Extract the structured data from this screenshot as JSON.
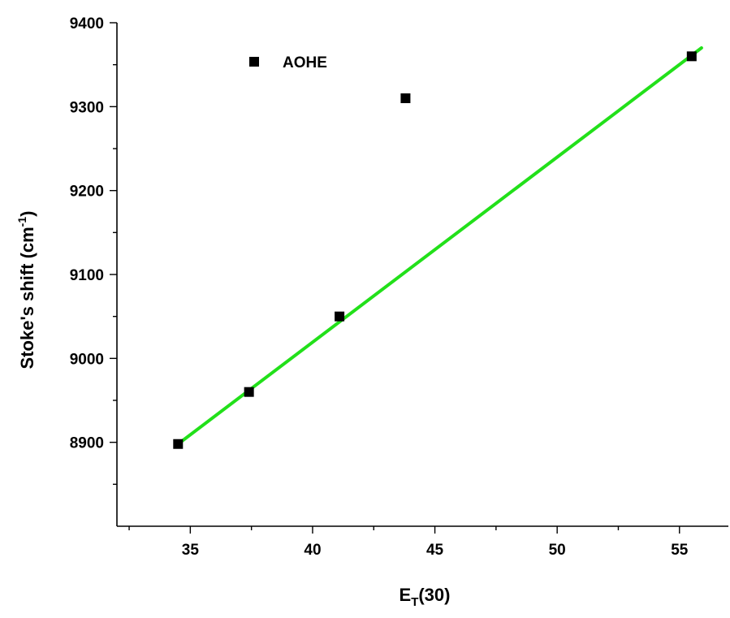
{
  "chart_data": {
    "type": "scatter",
    "title": "",
    "xlabel": {
      "main": "E",
      "sub": "T",
      "rest": "(30)"
    },
    "ylabel": {
      "main": "Stoke's shift (cm",
      "sup": "-1",
      "rest": ")"
    },
    "xlim": [
      32,
      57
    ],
    "ylim": [
      8800,
      9400
    ],
    "xticks": [
      35,
      40,
      45,
      50,
      55
    ],
    "yticks": [
      8900,
      9000,
      9100,
      9200,
      9300,
      9400
    ],
    "series": [
      {
        "name": "AOHE",
        "marker": "square",
        "color": "#000000",
        "points": [
          {
            "x": 34.5,
            "y": 8898
          },
          {
            "x": 37.4,
            "y": 8960
          },
          {
            "x": 41.1,
            "y": 9050
          },
          {
            "x": 43.8,
            "y": 9310
          },
          {
            "x": 55.5,
            "y": 9360
          }
        ]
      }
    ],
    "fit_line": {
      "color": "#22e01a",
      "from": {
        "x": 34.5,
        "y": 8898
      },
      "to": {
        "x": 55.9,
        "y": 9370
      }
    },
    "legend": {
      "position": "top-left",
      "entries": [
        "AOHE"
      ]
    },
    "grid": false
  }
}
